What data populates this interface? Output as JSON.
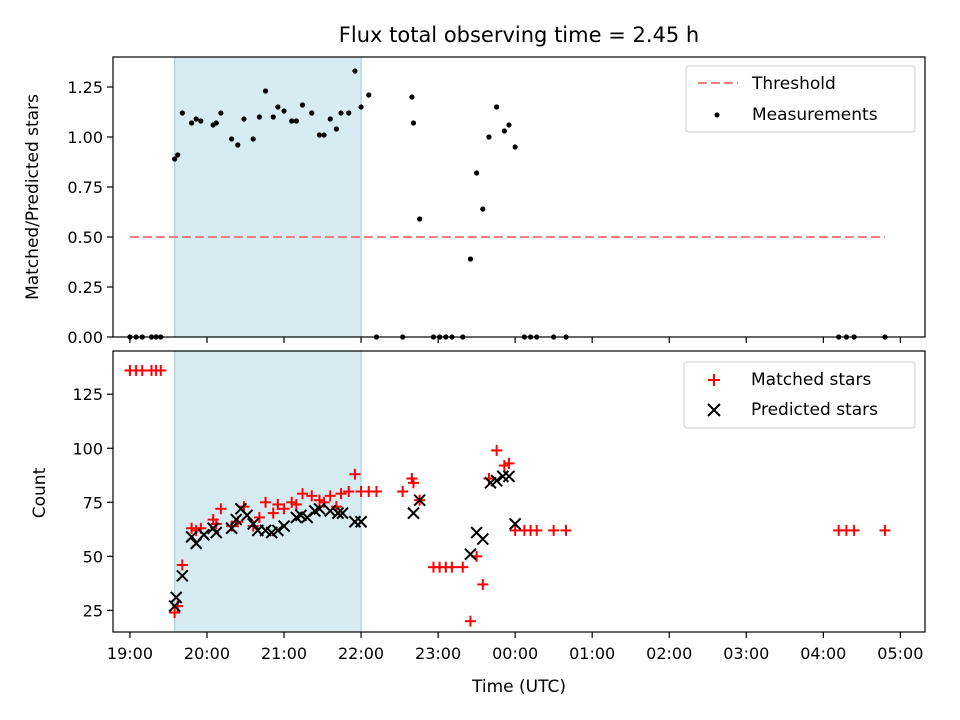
{
  "title": "Flux total observing time = 2.45 h",
  "chart_data": [
    {
      "type": "scatter",
      "ylabel": "Matched/Predicted stars",
      "xlim": [
        18.78,
        29.32
      ],
      "ylim": [
        0,
        1.4
      ],
      "yticks": [
        0,
        0.25,
        0.5,
        0.75,
        1.0,
        1.25
      ],
      "ytick_labels": [
        "0.00",
        "0.25",
        "0.50",
        "0.75",
        "1.00",
        "1.25"
      ],
      "xticks": [
        19,
        20,
        21,
        22,
        23,
        24,
        25,
        26,
        27,
        28,
        29
      ],
      "shaded_span": [
        19.58,
        22.0
      ],
      "legend_position": "upper right",
      "series": [
        {
          "name": "Threshold",
          "style": "dashed-line",
          "color": "#f08080",
          "x": [
            19.0,
            28.8
          ],
          "y": [
            0.5,
            0.5
          ]
        },
        {
          "name": "Measurements",
          "style": "dot",
          "color": "#000000",
          "x": [
            19.0,
            19.08,
            19.16,
            19.28,
            19.34,
            19.4,
            19.58,
            19.62,
            19.68,
            19.8,
            19.86,
            19.92,
            20.08,
            20.12,
            20.18,
            20.32,
            20.4,
            20.48,
            20.6,
            20.68,
            20.76,
            20.86,
            20.92,
            21.0,
            21.1,
            21.16,
            21.24,
            21.36,
            21.46,
            21.52,
            21.6,
            21.68,
            21.74,
            21.84,
            21.92,
            22.0,
            22.1,
            22.2,
            22.54,
            22.66,
            22.68,
            22.76,
            22.94,
            23.02,
            23.1,
            23.18,
            23.32,
            23.42,
            23.5,
            23.58,
            23.66,
            23.76,
            23.86,
            23.92,
            24.0,
            24.12,
            24.2,
            24.28,
            24.5,
            24.66,
            28.2,
            28.3,
            28.4,
            28.8
          ],
          "y": [
            0,
            0,
            0,
            0,
            0,
            0,
            0.89,
            0.91,
            1.12,
            1.07,
            1.09,
            1.08,
            1.06,
            1.07,
            1.12,
            0.99,
            0.96,
            1.09,
            0.99,
            1.1,
            1.23,
            1.1,
            1.15,
            1.13,
            1.08,
            1.08,
            1.16,
            1.12,
            1.01,
            1.01,
            1.09,
            1.04,
            1.12,
            1.12,
            1.33,
            1.15,
            1.21,
            0,
            0,
            1.2,
            1.07,
            0.59,
            0,
            0,
            0,
            0,
            0,
            0.39,
            0.82,
            0.64,
            1.0,
            1.15,
            1.03,
            1.06,
            0.95,
            0,
            0,
            0,
            0,
            0,
            0,
            0,
            0,
            0
          ]
        }
      ]
    },
    {
      "type": "scatter",
      "ylabel": "Count",
      "xlabel": "Time (UTC)",
      "xlim": [
        18.78,
        29.32
      ],
      "ylim": [
        15,
        145
      ],
      "yticks": [
        25,
        50,
        75,
        100,
        125
      ],
      "ytick_labels": [
        "25",
        "50",
        "75",
        "100",
        "125"
      ],
      "xticks": [
        19,
        20,
        21,
        22,
        23,
        24,
        25,
        26,
        27,
        28,
        29
      ],
      "xtick_labels": [
        "19:00",
        "20:00",
        "21:00",
        "22:00",
        "23:00",
        "00:00",
        "01:00",
        "02:00",
        "03:00",
        "04:00",
        "05:00"
      ],
      "shaded_span": [
        19.58,
        22.0
      ],
      "legend_position": "upper right",
      "series": [
        {
          "name": "Matched stars",
          "style": "plus",
          "color": "#ff0000",
          "x": [
            19.0,
            19.08,
            19.16,
            19.28,
            19.34,
            19.4,
            19.58,
            19.62,
            19.68,
            19.8,
            19.86,
            19.92,
            20.08,
            20.12,
            20.18,
            20.32,
            20.4,
            20.48,
            20.6,
            20.68,
            20.76,
            20.86,
            20.92,
            21.0,
            21.1,
            21.16,
            21.24,
            21.36,
            21.46,
            21.52,
            21.6,
            21.68,
            21.74,
            21.84,
            21.92,
            22.0,
            22.1,
            22.2,
            22.54,
            22.66,
            22.68,
            22.76,
            22.94,
            23.02,
            23.1,
            23.18,
            23.32,
            23.42,
            23.5,
            23.58,
            23.66,
            23.76,
            23.86,
            23.92,
            24.0,
            24.12,
            24.2,
            24.28,
            24.5,
            24.66,
            28.2,
            28.3,
            28.4,
            28.8
          ],
          "y": [
            136,
            136,
            136,
            136,
            136,
            136,
            24,
            27,
            46,
            63,
            62,
            63,
            67,
            65,
            72,
            64,
            66,
            73,
            64,
            68,
            75,
            70,
            74,
            72,
            75,
            74,
            79,
            78,
            76,
            75,
            78,
            73,
            79,
            80,
            88,
            80,
            80,
            80,
            80,
            86,
            84,
            76,
            45,
            45,
            45,
            45,
            45,
            20,
            50,
            37,
            86,
            99,
            92,
            93,
            62,
            62,
            62,
            62,
            62,
            62,
            62,
            62,
            62,
            62
          ]
        },
        {
          "name": "Predicted stars",
          "style": "x",
          "color": "#000000",
          "x": [
            19.58,
            19.6,
            19.68,
            19.8,
            19.86,
            19.96,
            20.08,
            20.12,
            20.32,
            20.38,
            20.44,
            20.52,
            20.6,
            20.66,
            20.76,
            20.84,
            20.92,
            21.0,
            21.16,
            21.22,
            21.3,
            21.4,
            21.46,
            21.6,
            21.7,
            21.76,
            21.92,
            22.0,
            22.68,
            22.76,
            23.42,
            23.5,
            23.58,
            23.68,
            23.76,
            23.84,
            23.92,
            24.0
          ],
          "y": [
            27,
            31,
            41,
            59,
            56,
            60,
            63,
            61,
            63,
            67,
            72,
            69,
            65,
            62,
            62,
            61,
            62,
            64,
            68,
            69,
            68,
            71,
            72,
            71,
            70,
            70,
            66,
            66,
            70,
            76,
            51,
            61,
            58,
            84,
            85,
            87,
            87,
            65
          ]
        }
      ]
    }
  ]
}
